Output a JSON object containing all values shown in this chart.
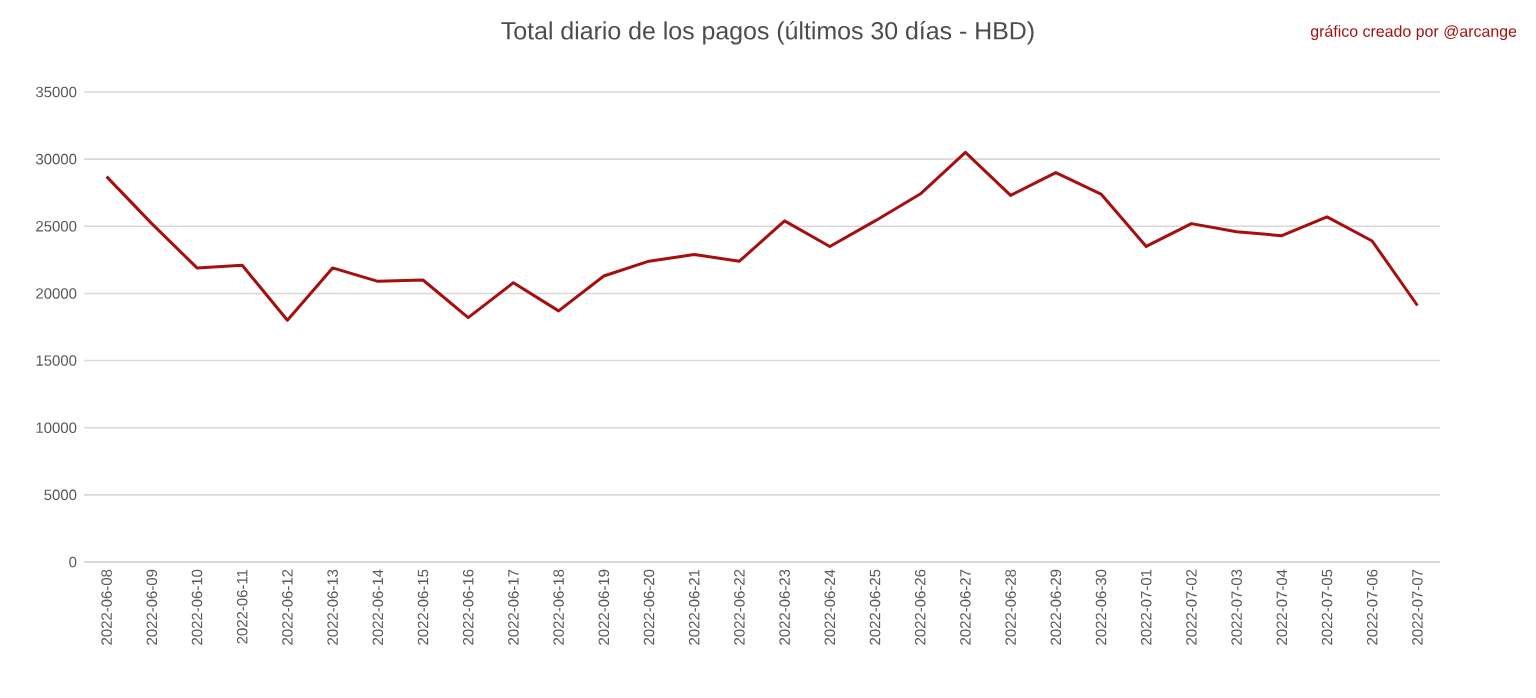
{
  "chart_data": {
    "type": "line",
    "title": "Total diario de los pagos (últimos 30 días - HBD)",
    "annotations": [
      "gráfico creado por @arcange"
    ],
    "categories": [
      "2022-06-08",
      "2022-06-09",
      "2022-06-10",
      "2022-06-11",
      "2022-06-12",
      "2022-06-13",
      "2022-06-14",
      "2022-06-15",
      "2022-06-16",
      "2022-06-17",
      "2022-06-18",
      "2022-06-19",
      "2022-06-20",
      "2022-06-21",
      "2022-06-22",
      "2022-06-23",
      "2022-06-24",
      "2022-06-25",
      "2022-06-26",
      "2022-06-27",
      "2022-06-28",
      "2022-06-29",
      "2022-06-30",
      "2022-07-01",
      "2022-07-02",
      "2022-07-03",
      "2022-07-04",
      "2022-07-05",
      "2022-07-06",
      "2022-07-07"
    ],
    "series": [
      {
        "color": "#a50f0f",
        "values": [
          28700,
          25200,
          21900,
          22100,
          18000,
          21900,
          20900,
          21000,
          18200,
          20800,
          18700,
          21300,
          22400,
          22900,
          22400,
          25400,
          23500,
          25400,
          27400,
          30500,
          27300,
          29000,
          27400,
          23500,
          25200,
          24600,
          24300,
          25700,
          23900,
          19100
        ]
      }
    ],
    "ylim": [
      0,
      35000
    ],
    "yticks": [
      0,
      5000,
      10000,
      15000,
      20000,
      25000,
      30000,
      35000
    ],
    "grid": "y",
    "marker": "none",
    "line_style": "solid"
  }
}
